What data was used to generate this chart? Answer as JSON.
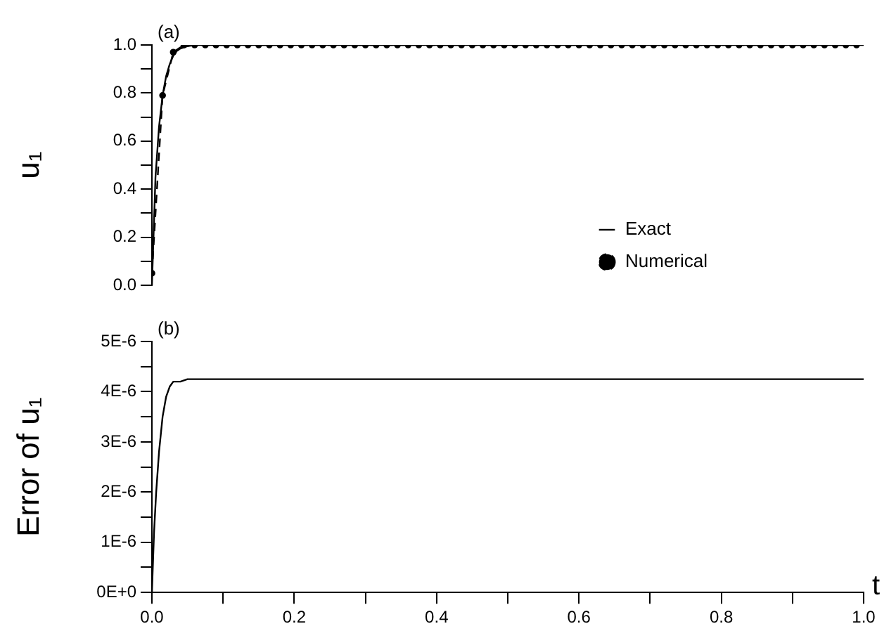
{
  "chart_data": [
    {
      "type": "line",
      "annotations": [
        "(a)"
      ],
      "ylabel": "u₁",
      "xlim": [
        0,
        1
      ],
      "ylim": [
        0,
        1
      ],
      "yticks": [
        {
          "value": 0,
          "label": "0.0"
        },
        {
          "value": 0.1,
          "label": null
        },
        {
          "value": 0.2,
          "label": "0.2"
        },
        {
          "value": 0.3,
          "label": null
        },
        {
          "value": 0.4,
          "label": "0.4"
        },
        {
          "value": 0.5,
          "label": null
        },
        {
          "value": 0.6,
          "label": "0.6"
        },
        {
          "value": 0.7,
          "label": null
        },
        {
          "value": 0.8,
          "label": "0.8"
        },
        {
          "value": 0.9,
          "label": null
        },
        {
          "value": 1,
          "label": "1.0"
        }
      ],
      "tick_labels": "y",
      "grid": false,
      "legend": "center",
      "series": [
        {
          "name": "Exact",
          "color": "#000000",
          "marker": "none",
          "line_style": "solid",
          "x": [
            0,
            0.005,
            0.01,
            0.015,
            0.02,
            0.025,
            0.03,
            0.035,
            0.04,
            0.05,
            0.06,
            0.08,
            0.1,
            0.5,
            1
          ],
          "values": [
            0,
            0.45,
            0.66,
            0.79,
            0.87,
            0.92,
            0.955,
            0.975,
            0.985,
            0.995,
            1,
            1,
            1,
            1,
            1
          ]
        },
        {
          "name": "Numerical",
          "color": "#000000",
          "marker": "circle",
          "line_style": "dashed",
          "x": [
            0,
            0.015,
            0.03,
            0.045,
            0.06,
            0.075,
            0.09,
            0.105,
            0.12,
            0.135,
            0.15,
            0.165,
            0.18,
            0.195,
            0.21,
            0.225,
            0.24,
            0.255,
            0.27,
            0.285,
            0.3,
            0.315,
            0.33,
            0.345,
            0.36,
            0.375,
            0.39,
            0.405,
            0.42,
            0.435,
            0.45,
            0.465,
            0.48,
            0.495,
            0.51,
            0.525,
            0.54,
            0.555,
            0.57,
            0.585,
            0.6,
            0.615,
            0.63,
            0.645,
            0.66,
            0.675,
            0.69,
            0.705,
            0.72,
            0.735,
            0.75,
            0.765,
            0.78,
            0.795,
            0.81,
            0.825,
            0.84,
            0.855,
            0.87,
            0.885,
            0.9,
            0.915,
            0.93,
            0.945,
            0.96,
            0.975,
            0.99
          ],
          "values": [
            0.05,
            0.79,
            0.97,
            1,
            1,
            1,
            1,
            1,
            1,
            1,
            1,
            1,
            1,
            1,
            1,
            1,
            1,
            1,
            1,
            1,
            1,
            1,
            1,
            1,
            1,
            1,
            1,
            1,
            1,
            1,
            1,
            1,
            1,
            1,
            1,
            1,
            1,
            1,
            1,
            1,
            1,
            1,
            1,
            1,
            1,
            1,
            1,
            1,
            1,
            1,
            1,
            1,
            1,
            1,
            1,
            1,
            1,
            1,
            1,
            1,
            1,
            1,
            1,
            1,
            1,
            1,
            1
          ]
        }
      ]
    },
    {
      "type": "line",
      "annotations": [
        "(b)"
      ],
      "ylabel": "Error of u₁",
      "xlabel": "t",
      "xlim": [
        0,
        1
      ],
      "ylim": [
        0,
        5e-06
      ],
      "xticks": [
        {
          "value": 0,
          "label": "0.0"
        },
        {
          "value": 0.1,
          "label": null
        },
        {
          "value": 0.2,
          "label": "0.2"
        },
        {
          "value": 0.3,
          "label": null
        },
        {
          "value": 0.4,
          "label": "0.4"
        },
        {
          "value": 0.5,
          "label": null
        },
        {
          "value": 0.6,
          "label": "0.6"
        },
        {
          "value": 0.7,
          "label": null
        },
        {
          "value": 0.8,
          "label": "0.8"
        },
        {
          "value": 0.9,
          "label": null
        },
        {
          "value": 1,
          "label": "1.0"
        }
      ],
      "yticks": [
        {
          "value": 0,
          "label": "0E+0"
        },
        {
          "value": 5e-07,
          "label": null
        },
        {
          "value": 1e-06,
          "label": "1E-6"
        },
        {
          "value": 1.5e-06,
          "label": null
        },
        {
          "value": 2e-06,
          "label": "2E-6"
        },
        {
          "value": 2.5e-06,
          "label": null
        },
        {
          "value": 3e-06,
          "label": "3E-6"
        },
        {
          "value": 3.5e-06,
          "label": null
        },
        {
          "value": 4e-06,
          "label": "4E-6"
        },
        {
          "value": 4.5e-06,
          "label": null
        },
        {
          "value": 5e-06,
          "label": "5E-6"
        }
      ],
      "grid": false,
      "series": [
        {
          "color": "#000000",
          "marker": "none",
          "line_style": "solid",
          "x": [
            0,
            0.003,
            0.006,
            0.01,
            0.015,
            0.02,
            0.025,
            0.03,
            0.04,
            0.05,
            0.06,
            0.1,
            0.5,
            1
          ],
          "values": [
            0,
            1.2e-06,
            2e-06,
            2.8e-06,
            3.5e-06,
            3.9e-06,
            4.1e-06,
            4.2e-06,
            4.2e-06,
            4.25e-06,
            4.25e-06,
            4.25e-06,
            4.25e-06,
            4.25e-06
          ]
        }
      ]
    }
  ]
}
